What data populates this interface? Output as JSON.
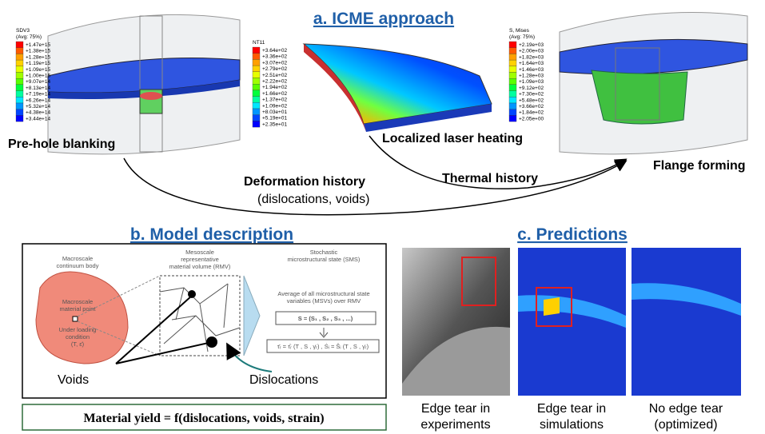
{
  "panel_a": {
    "title": "a. ICME approach",
    "steps": [
      "Pre-hole blanking",
      "Localized laser heating",
      "Flange forming"
    ],
    "arrows": {
      "deformation": "Deformation history",
      "deformation_note": "(dislocations, voids)",
      "thermal": "Thermal history"
    },
    "legends": [
      {
        "title": "SDV3",
        "subtitle": "(Avg: 75%)",
        "labels": [
          "+1.47e+15",
          "+1.38e+15",
          "+1.28e+15",
          "+1.19e+15",
          "+1.09e+15",
          "+1.00e+15",
          "+9.07e+14",
          "+8.13e+14",
          "+7.19e+14",
          "+6.26e+14",
          "+5.32e+14",
          "+4.38e+14",
          "+3.44e+14"
        ]
      },
      {
        "title": "NT11",
        "labels": [
          "+3.64e+02",
          "+3.36e+02",
          "+3.07e+02",
          "+2.79e+02",
          "+2.51e+02",
          "+2.22e+02",
          "+1.94e+02",
          "+1.66e+02",
          "+1.37e+02",
          "+1.09e+02",
          "+8.03e+01",
          "+5.19e+01",
          "+2.35e+01"
        ]
      },
      {
        "title": "S, Mises",
        "subtitle": "(Avg: 75%)",
        "labels": [
          "+2.19e+03",
          "+2.00e+03",
          "+1.82e+03",
          "+1.64e+03",
          "+1.46e+03",
          "+1.28e+03",
          "+1.09e+03",
          "+9.12e+02",
          "+7.30e+02",
          "+5.48e+02",
          "+3.66e+02",
          "+1.84e+02",
          "+2.05e+00"
        ]
      }
    ]
  },
  "panel_b": {
    "title": "b. Model description",
    "macro": [
      "Macroscale",
      "continuum body"
    ],
    "material_point": [
      "Macroscale",
      "material point"
    ],
    "loading": [
      "Under loading",
      "condition",
      "(T, ε̇)"
    ],
    "meso": [
      "Mesoscale",
      "representative",
      "material volume (RMV)"
    ],
    "sms": [
      "Stochastic",
      "microstructural state (SMS)"
    ],
    "average": [
      "Average of all microstructural state",
      "variables (MSVs) over RMV"
    ],
    "state": "S = (S₁ , S₂ , S₃ , ...)",
    "equations": "τ̄ᵣ = τ̂ᵣ (T , S , γ̇ᵣ) ,  Ṡᵢ = Ŝᵢ (T , S , γ̇ᵣ)",
    "voids": "Voids",
    "dislocations": "Dislocations",
    "formula": "Material yield = f(dislocations, voids, strain)"
  },
  "panel_c": {
    "title": "c. Predictions",
    "captions": [
      [
        "Edge tear in",
        "experiments"
      ],
      [
        "Edge tear in",
        "simulations"
      ],
      [
        "No edge tear",
        "(optimized)"
      ]
    ]
  }
}
